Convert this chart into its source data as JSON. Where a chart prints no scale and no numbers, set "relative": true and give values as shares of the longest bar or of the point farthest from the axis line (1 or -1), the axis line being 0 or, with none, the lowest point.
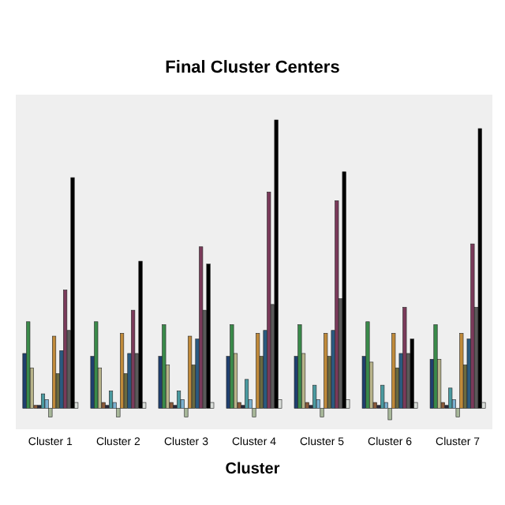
{
  "chart_data": {
    "type": "bar",
    "title": "Final Cluster Centers",
    "xlabel": "Cluster",
    "relative": true,
    "categories": [
      "Cluster 1",
      "Cluster 2",
      "Cluster 3",
      "Cluster 4",
      "Cluster 5",
      "Cluster 6",
      "Cluster 7"
    ],
    "series": [
      {
        "color": "#1f3f6e",
        "values": [
          0.19,
          0.18,
          0.18,
          0.18,
          0.18,
          0.18,
          0.17
        ]
      },
      {
        "color": "#3a8a4a",
        "values": [
          0.3,
          0.3,
          0.29,
          0.29,
          0.29,
          0.3,
          0.29
        ]
      },
      {
        "color": "#b8b48a",
        "values": [
          0.14,
          0.14,
          0.15,
          0.19,
          0.19,
          0.16,
          0.17
        ]
      },
      {
        "color": "#8a5a3a",
        "values": [
          0.01,
          0.02,
          0.02,
          0.02,
          0.02,
          0.02,
          0.02
        ]
      },
      {
        "color": "#2a2a3a",
        "values": [
          0.01,
          0.01,
          0.01,
          0.01,
          0.01,
          0.01,
          0.01
        ]
      },
      {
        "color": "#4a9aa0",
        "values": [
          0.05,
          0.06,
          0.06,
          0.1,
          0.08,
          0.08,
          0.07
        ]
      },
      {
        "color": "#7ab0d0",
        "values": [
          0.03,
          0.02,
          0.03,
          0.03,
          0.03,
          0.02,
          0.03
        ]
      },
      {
        "color": "#a8b89a",
        "values": [
          -0.03,
          -0.03,
          -0.03,
          -0.03,
          -0.03,
          -0.04,
          -0.03
        ]
      },
      {
        "color": "#c08a3a",
        "values": [
          0.25,
          0.26,
          0.25,
          0.26,
          0.26,
          0.26,
          0.26
        ]
      },
      {
        "color": "#6a6a40",
        "values": [
          0.12,
          0.12,
          0.15,
          0.18,
          0.18,
          0.14,
          0.15
        ]
      },
      {
        "color": "#2a5a80",
        "values": [
          0.2,
          0.19,
          0.24,
          0.27,
          0.27,
          0.19,
          0.24
        ]
      },
      {
        "color": "#7a3a5a",
        "values": [
          0.41,
          0.34,
          0.56,
          0.75,
          0.72,
          0.35,
          0.57
        ]
      },
      {
        "color": "#5a5a5a",
        "values": [
          0.27,
          0.19,
          0.34,
          0.36,
          0.38,
          0.19,
          0.35
        ]
      },
      {
        "color": "#000000",
        "values": [
          0.8,
          0.51,
          0.5,
          1.0,
          0.82,
          0.24,
          0.97
        ]
      },
      {
        "color": "#d8dcd8",
        "values": [
          0.02,
          0.02,
          0.02,
          0.03,
          0.03,
          0.02,
          0.02
        ]
      }
    ]
  }
}
